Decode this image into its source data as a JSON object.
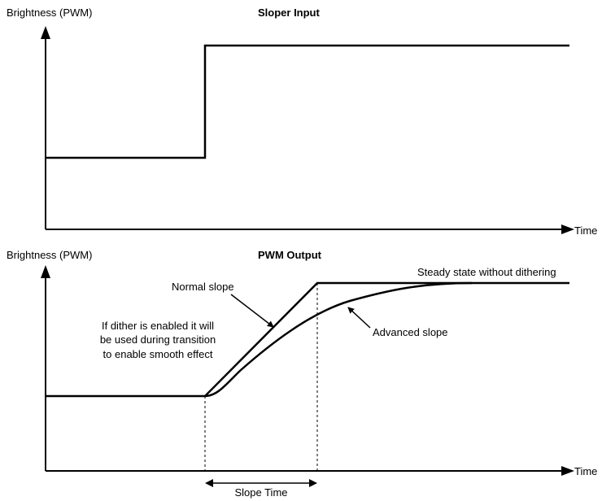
{
  "colors": {
    "line": "#000000",
    "background": "#ffffff"
  },
  "top_panel": {
    "title": "Sloper Input",
    "y_axis_label": "Brightness (PWM)",
    "x_axis_label": "Time"
  },
  "bottom_panel": {
    "title": "PWM Output",
    "y_axis_label": "Brightness (PWM)",
    "x_axis_label": "Time",
    "annotations": {
      "normal_slope": "Normal slope",
      "advanced_slope": "Advanced slope",
      "steady_state": "Steady state without dithering",
      "dither_note_1": "If dither is enabled it will",
      "dither_note_2": "be used during transition",
      "dither_note_3": "to enable smooth effect",
      "slope_time": "Slope Time"
    }
  }
}
